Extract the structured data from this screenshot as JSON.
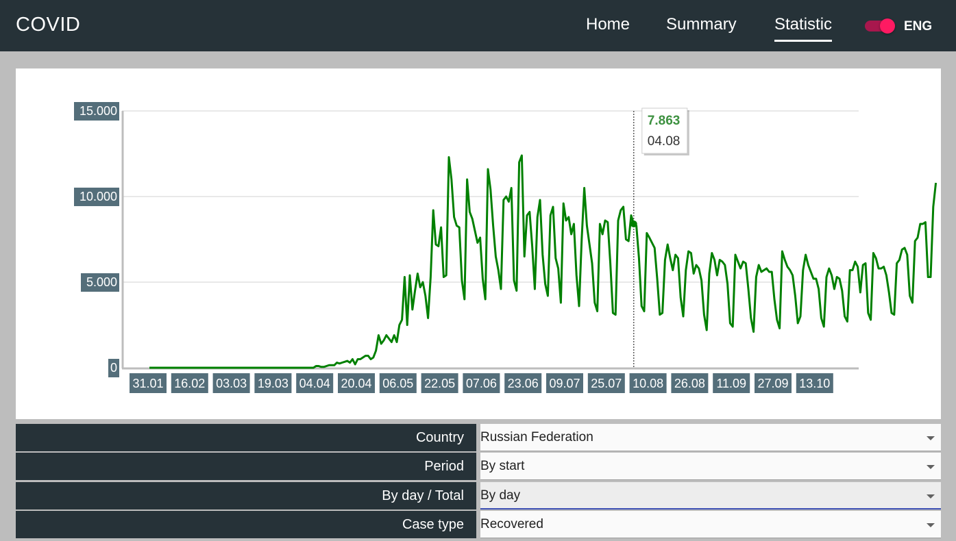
{
  "app": {
    "title": "COVID"
  },
  "nav": {
    "items": [
      {
        "label": "Home",
        "active": false
      },
      {
        "label": "Summary",
        "active": false
      },
      {
        "label": "Statistic",
        "active": true
      }
    ],
    "language": "ENG",
    "toggle_on": true
  },
  "colors": {
    "appbar": "#263238",
    "line": "#008000",
    "tooltip_value": "#3d9140",
    "label_bg": "#546e7a",
    "toggle": "#ff1a62"
  },
  "chart_data": {
    "type": "line",
    "series_name": "Recovered",
    "y_ticks": [
      "15.000",
      "10.000",
      "5.000",
      "0"
    ],
    "ylim": [
      0,
      15000
    ],
    "x_tick_labels": [
      "31.01",
      "16.02",
      "03.03",
      "19.03",
      "04.04",
      "20.04",
      "06.05",
      "22.05",
      "07.06",
      "23.06",
      "09.07",
      "25.07",
      "10.08",
      "26.08",
      "11.09",
      "27.09",
      "13.10"
    ],
    "x_start": "31.01",
    "day_step": 1,
    "values": [
      0,
      0,
      0,
      0,
      0,
      0,
      0,
      0,
      0,
      0,
      0,
      0,
      0,
      0,
      0,
      0,
      0,
      0,
      0,
      0,
      0,
      0,
      0,
      0,
      0,
      0,
      0,
      0,
      0,
      0,
      0,
      0,
      0,
      0,
      0,
      0,
      0,
      0,
      0,
      0,
      0,
      0,
      0,
      0,
      0,
      0,
      0,
      0,
      0,
      0,
      0,
      0,
      0,
      0,
      0,
      0,
      0,
      0,
      0,
      0,
      0,
      0,
      0,
      0,
      100,
      100,
      50,
      50,
      100,
      150,
      150,
      150,
      300,
      250,
      300,
      350,
      400,
      300,
      500,
      200,
      500,
      500,
      600,
      700,
      700,
      500,
      600,
      1000,
      1900,
      1400,
      1600,
      1900,
      1700,
      1500,
      1900,
      1500,
      2500,
      2800,
      5300,
      2500,
      5400,
      3400,
      4500,
      5500,
      4700,
      5000,
      4200,
      2900,
      5300,
      9200,
      7200,
      7100,
      8200,
      5300,
      5400,
      12300,
      11000,
      8800,
      8300,
      8200,
      5100,
      4000,
      11000,
      9100,
      8700,
      8000,
      7300,
      7600,
      5200,
      4000,
      11600,
      10400,
      8300,
      6500,
      5700,
      4600,
      9800,
      10000,
      9700,
      10500,
      5100,
      4500,
      12000,
      12400,
      6500,
      8900,
      9100,
      7100,
      4600,
      8800,
      9800,
      6600,
      4900,
      4200,
      8900,
      9400,
      6400,
      5800,
      3800,
      9600,
      8600,
      8800,
      7800,
      8400,
      5400,
      3600,
      7500,
      10500,
      8300,
      7200,
      6100,
      3800,
      3300,
      8400,
      7800,
      8600,
      8500,
      6100,
      3200,
      3100,
      8600,
      9200,
      9400,
      7500,
      7400,
      8900,
      8400,
      8300,
      6400,
      3600,
      3300,
      7863,
      7600,
      7300,
      7000,
      5200,
      3100,
      3200,
      6300,
      7200,
      6400,
      5700,
      6600,
      6400,
      4100,
      3000,
      5700,
      6800,
      6700,
      5500,
      6000,
      5800,
      5100,
      3100,
      2200,
      5500,
      6700,
      6300,
      5400,
      6300,
      6200,
      6000,
      4900,
      2600,
      2400,
      6600,
      6200,
      5800,
      6200,
      6100,
      4600,
      2900,
      2100,
      5300,
      6000,
      5600,
      5700,
      5800,
      5600,
      5600,
      4000,
      2800,
      2300,
      6800,
      6300,
      5900,
      5700,
      5400,
      4200,
      2600,
      3000,
      5700,
      6600,
      6000,
      5600,
      5200,
      5200,
      4600,
      2900,
      2400,
      5300,
      5800,
      5400,
      4600,
      5300,
      5200,
      4500,
      3000,
      2700,
      5700,
      5700,
      6200,
      5900,
      4400,
      6000,
      6100,
      3200,
      2800,
      6700,
      6400,
      5800,
      5800,
      5900,
      5400,
      4400,
      3200,
      3100,
      6100,
      6300,
      6900,
      7000,
      6600,
      4200,
      3800,
      7400,
      7600,
      8400,
      8400,
      8500,
      5300,
      5300,
      9400,
      10800
    ],
    "tooltip": {
      "value": "7.863",
      "date": "04.08",
      "index": 186
    }
  },
  "filters": [
    {
      "label": "Country",
      "value": "Russian Federation",
      "focused": false
    },
    {
      "label": "Period",
      "value": "By start",
      "focused": false
    },
    {
      "label": "By day / Total",
      "value": "By day",
      "focused": true
    },
    {
      "label": "Case type",
      "value": "Recovered",
      "focused": false
    }
  ]
}
